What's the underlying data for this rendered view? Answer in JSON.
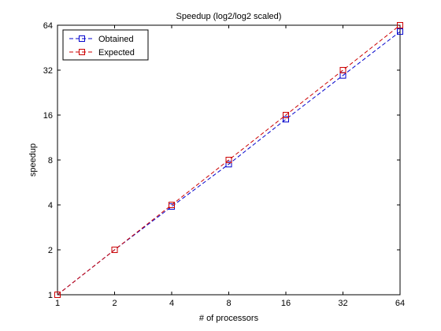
{
  "chart_data": {
    "type": "line",
    "title": "Speedup (log2/log2 scaled)",
    "xlabel": "# of processors",
    "ylabel": "speedup",
    "xscale": "log2",
    "yscale": "log2",
    "xlim": [
      1,
      64
    ],
    "ylim": [
      1,
      64
    ],
    "xticks": [
      1,
      2,
      4,
      8,
      16,
      32,
      64
    ],
    "yticks": [
      1,
      2,
      4,
      8,
      16,
      32,
      64
    ],
    "xtick_labels": [
      "1",
      "2",
      "4",
      "8",
      "16",
      "32",
      "64"
    ],
    "ytick_labels": [
      "1",
      "2",
      "4",
      "8",
      "16",
      "32",
      "64"
    ],
    "grid": false,
    "legend_position": "top-left",
    "series": [
      {
        "name": "Obtained",
        "color": "#0000cc",
        "line_style": "dashed",
        "marker": "square",
        "x": [
          1,
          2,
          4,
          8,
          16,
          32,
          64
        ],
        "y": [
          1,
          2,
          3.9,
          7.5,
          15.0,
          29.5,
          58.0
        ]
      },
      {
        "name": "Expected",
        "color": "#cc0000",
        "line_style": "dashed",
        "marker": "square",
        "x": [
          1,
          2,
          4,
          8,
          16,
          32,
          64
        ],
        "y": [
          1,
          2,
          4,
          8,
          16,
          32,
          64
        ]
      }
    ]
  }
}
